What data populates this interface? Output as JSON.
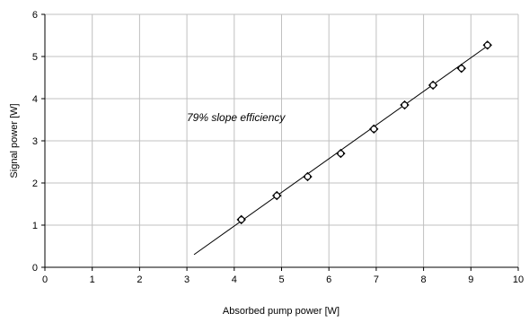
{
  "chart_data": {
    "type": "scatter",
    "xlabel": "Absorbed pump power [W]",
    "ylabel": "Signal power [W]",
    "xlim": [
      0,
      10
    ],
    "ylim": [
      0,
      6
    ],
    "x_ticks": [
      "0",
      "1",
      "2",
      "3",
      "4",
      "5",
      "6",
      "7",
      "8",
      "9",
      "10"
    ],
    "y_ticks": [
      "0",
      "1",
      "2",
      "3",
      "4",
      "5",
      "6"
    ],
    "grid": true,
    "series": [
      {
        "type": "scatter",
        "x": [
          4.15,
          4.9,
          5.55,
          6.25,
          6.95,
          7.6,
          8.2,
          8.8,
          9.35
        ],
        "y": [
          1.13,
          1.7,
          2.15,
          2.7,
          3.28,
          3.85,
          4.32,
          4.72,
          5.27
        ]
      },
      {
        "type": "line",
        "x": [
          3.15,
          9.35
        ],
        "y": [
          0.3,
          5.25
        ]
      }
    ],
    "annotation": "79% slope efficiency",
    "colors": {
      "grid": "#c0c0c0",
      "axis": "#000000",
      "marker": "#000000",
      "fit_line": "#000000"
    }
  }
}
